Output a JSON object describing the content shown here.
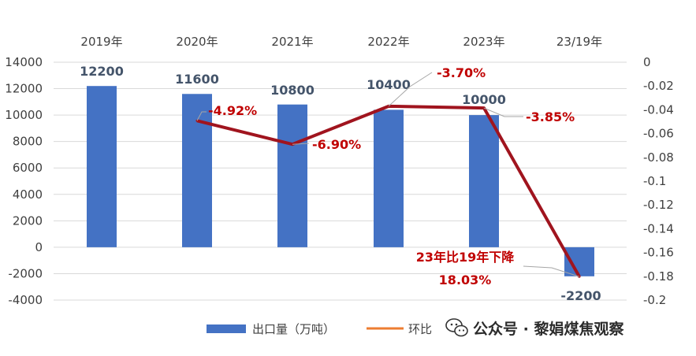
{
  "chart_data": {
    "type": "bar",
    "categories": [
      "2019年",
      "2020年",
      "2021年",
      "2022年",
      "2023年",
      "23/19年"
    ],
    "series": [
      {
        "name": "出口量（万吨）",
        "type": "bar",
        "axis": "left",
        "color": "#4472c4",
        "values": [
          12200,
          11600,
          10800,
          10400,
          10000,
          -2200
        ],
        "labels": [
          "12200",
          "11600",
          "10800",
          "10400",
          "10000",
          "-2200"
        ]
      },
      {
        "name": "环比",
        "type": "line",
        "axis": "right",
        "color": "#a0141e",
        "legend_color": "#ed7d31",
        "points": [
          {
            "category": "2020年",
            "value": -0.0492,
            "label": "-4.92%"
          },
          {
            "category": "2021年",
            "value": -0.069,
            "label": "-6.90%"
          },
          {
            "category": "2022年",
            "value": -0.037,
            "label": "-3.70%"
          },
          {
            "category": "2023年",
            "value": -0.0385,
            "label": "-3.85%"
          },
          {
            "category": "23/19年",
            "value": -0.1803
          }
        ]
      }
    ],
    "left_axis": {
      "min": -4000,
      "max": 14000,
      "step": 2000,
      "ticks": [
        "-4000",
        "-2000",
        "0",
        "2000",
        "4000",
        "6000",
        "8000",
        "10000",
        "12000",
        "14000"
      ]
    },
    "right_axis": {
      "min": -0.2,
      "max": 0,
      "step": 0.02,
      "ticks": [
        "0",
        "-0.02",
        "-0.04",
        "-0.06",
        "-0.08",
        "-0.1",
        "-0.12",
        "-0.14",
        "-0.16",
        "-0.18",
        "-0.2"
      ]
    },
    "annotation": {
      "line1": "23年比19年下降",
      "line2": "18.03%"
    },
    "grid": true,
    "legend_position": "bottom"
  },
  "watermark": {
    "text": "公众号 · 黎娟煤焦观察",
    "icon": "wechat-icon"
  }
}
